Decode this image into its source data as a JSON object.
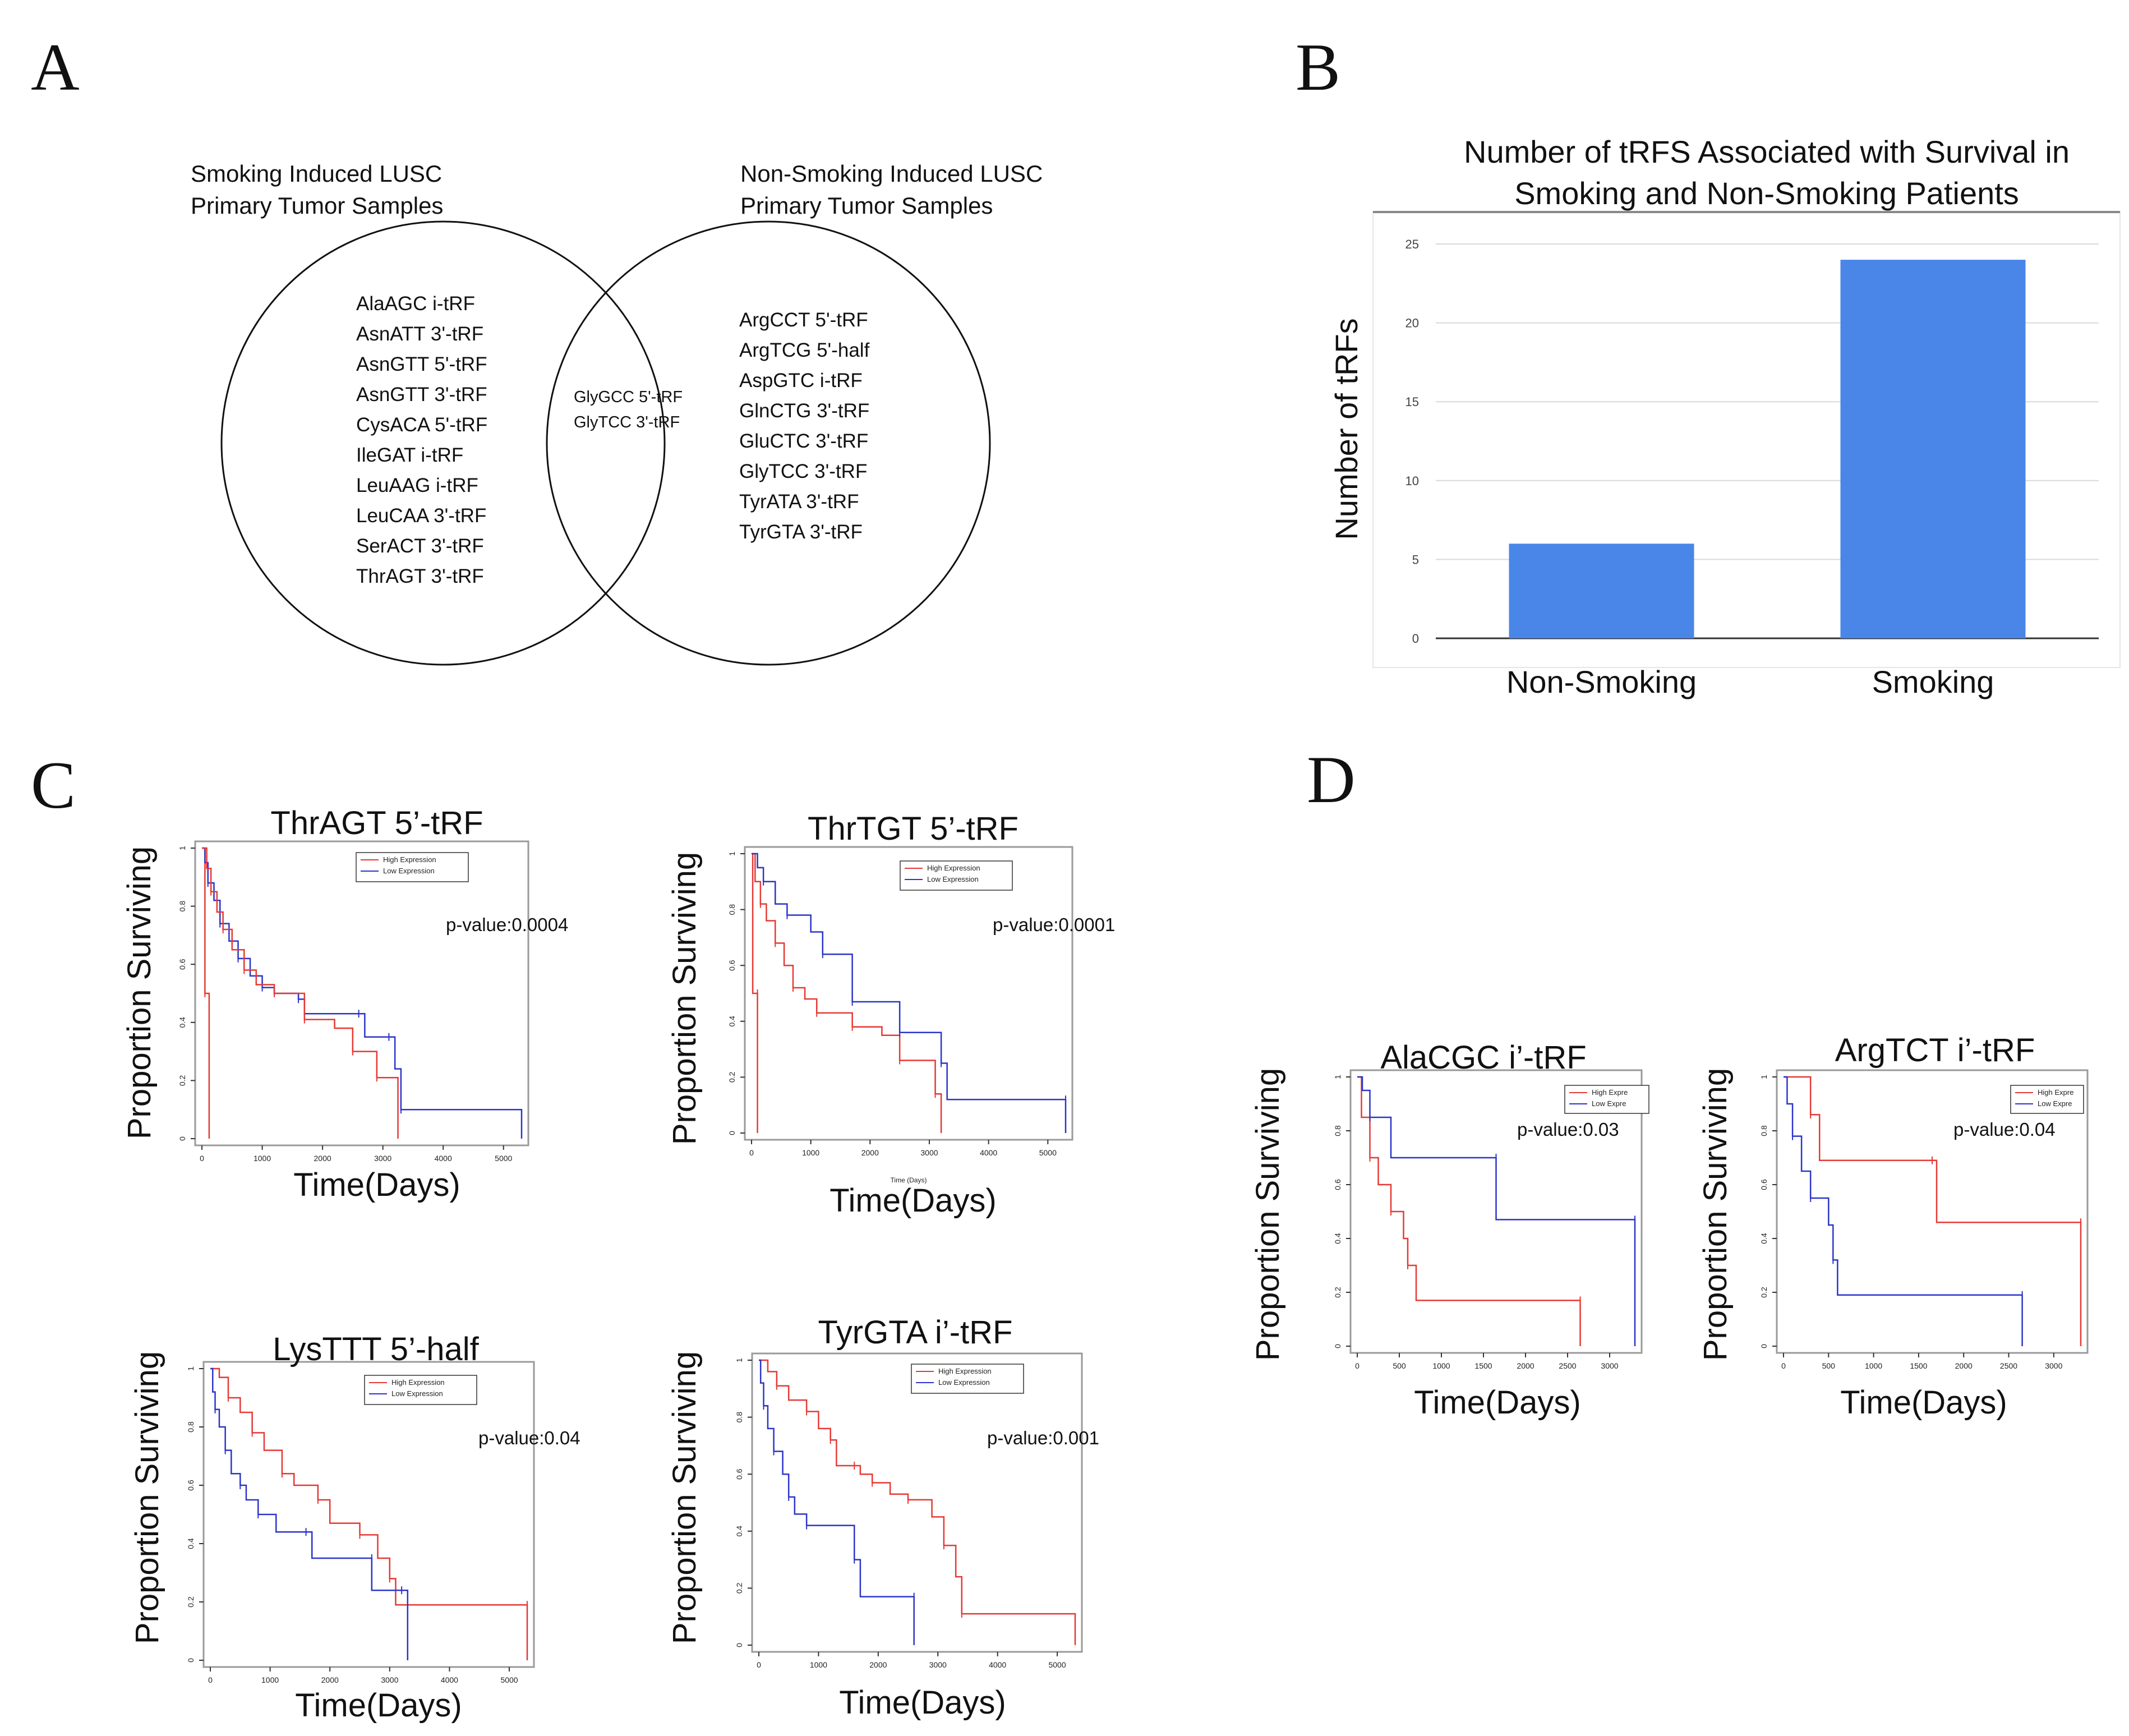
{
  "panels": {
    "A": "A",
    "B": "B",
    "C": "C",
    "D": "D"
  },
  "venn": {
    "left_title": [
      "Smoking Induced LUSC",
      "Primary Tumor Samples"
    ],
    "right_title": [
      "Non-Smoking Induced LUSC",
      "Primary Tumor Samples"
    ],
    "left_items": [
      "AlaAGC i-tRF",
      "AsnATT 3'-tRF",
      "AsnGTT 5'-tRF",
      "AsnGTT 3'-tRF",
      "CysACA 5'-tRF",
      "IleGAT i-tRF",
      "LeuAAG i-tRF",
      "LeuCAA 3'-tRF",
      "SerACT 3'-tRF",
      "ThrAGT 3'-tRF"
    ],
    "shared_items": [
      "GlyGCC 5'-tRF",
      "GlyTCC 3'-tRF"
    ],
    "right_items": [
      "ArgCCT 5'-tRF",
      "ArgTCG 5'-half",
      "AspGTC i-tRF",
      "GlnCTG 3'-tRF",
      "GluCTC 3'-tRF",
      "GlyTCC 3'-tRF",
      "TyrATA 3'-tRF",
      "TyrGTA 3'-tRF"
    ]
  },
  "colors": {
    "bar": "#4a86e8",
    "high": "#e53935",
    "low": "#2b35c8",
    "axis": "#555555"
  },
  "chart_data": [
    {
      "id": "B",
      "type": "bar",
      "title_lines": [
        "Number of tRFS Associated with Survival in",
        "Smoking and Non-Smoking Patients"
      ],
      "title": "Number of tRFS Associated with Survival in Smoking and Non-Smoking Patients",
      "ylabel": "Number of tRFs",
      "xlabel": "",
      "categories": [
        "Non-Smoking",
        "Smoking"
      ],
      "values": [
        6,
        24
      ],
      "ylim": [
        0,
        25
      ],
      "yticks": [
        0,
        5,
        10,
        15,
        20,
        25
      ],
      "grid": true
    },
    {
      "id": "C1",
      "type": "line",
      "title": "ThrAGT 5’-tRF",
      "xlabel": "Time(Days)",
      "ylabel": "Proportion Surviving",
      "xlim": [
        0,
        5300
      ],
      "ylim": [
        0,
        1
      ],
      "xticks": [
        0,
        1000,
        2000,
        3000,
        4000,
        5000
      ],
      "yticks": [
        0.0,
        0.2,
        0.4,
        0.6,
        0.8,
        1.0
      ],
      "p_value": "p-value:0.0004",
      "legend": [
        "High Expression",
        "Low Expression"
      ],
      "series": [
        {
          "name": "High Expression",
          "points": [
            [
              0,
              1
            ],
            [
              50,
              1
            ],
            [
              50,
              0.5
            ],
            [
              120,
              0.5
            ],
            [
              120,
              0
            ]
          ]
        },
        {
          "name": "Low Expression",
          "points": [
            [
              0,
              1
            ],
            [
              50,
              0.95
            ],
            [
              100,
              0.88
            ],
            [
              200,
              0.82
            ],
            [
              300,
              0.74
            ],
            [
              450,
              0.68
            ],
            [
              600,
              0.62
            ],
            [
              800,
              0.56
            ],
            [
              1000,
              0.52
            ],
            [
              1200,
              0.5
            ],
            [
              1600,
              0.48
            ],
            [
              1700,
              0.43
            ],
            [
              2600,
              0.43
            ],
            [
              2700,
              0.35
            ],
            [
              3100,
              0.35
            ],
            [
              3200,
              0.24
            ],
            [
              3300,
              0.1
            ],
            [
              5300,
              0.1
            ],
            [
              5300,
              0
            ]
          ]
        },
        {
          "name": "High Expression",
          "points": [
            [
              0,
              1
            ],
            [
              80,
              0.93
            ],
            [
              150,
              0.85
            ],
            [
              250,
              0.78
            ],
            [
              350,
              0.72
            ],
            [
              500,
              0.65
            ],
            [
              700,
              0.58
            ],
            [
              900,
              0.53
            ],
            [
              1200,
              0.5
            ],
            [
              1600,
              0.5
            ],
            [
              1700,
              0.41
            ],
            [
              2200,
              0.38
            ],
            [
              2500,
              0.3
            ],
            [
              2800,
              0.3
            ],
            [
              2900,
              0.21
            ],
            [
              3250,
              0.21
            ],
            [
              3250,
              0
            ]
          ]
        }
      ]
    },
    {
      "id": "C2",
      "type": "line",
      "title": "ThrTGT 5’-tRF",
      "xlabel": "Time(Days)",
      "ylabel": "Proportion Surviving",
      "x_small_label": "Time (Days)",
      "xlim": [
        0,
        5300
      ],
      "ylim": [
        0,
        1
      ],
      "xticks": [
        0,
        1000,
        2000,
        3000,
        4000,
        5000
      ],
      "yticks": [
        0.0,
        0.2,
        0.4,
        0.6,
        0.8,
        1.0
      ],
      "p_value": "p-value:0.0001",
      "legend": [
        "High Expression",
        "Low Expression"
      ],
      "series": [
        {
          "name": "High Expression",
          "points": [
            [
              0,
              1
            ],
            [
              20,
              0.5
            ],
            [
              100,
              0.5
            ],
            [
              100,
              0
            ]
          ]
        },
        {
          "name": "High Expression",
          "points": [
            [
              0,
              1
            ],
            [
              60,
              0.9
            ],
            [
              150,
              0.82
            ],
            [
              250,
              0.76
            ],
            [
              400,
              0.68
            ],
            [
              550,
              0.6
            ],
            [
              700,
              0.52
            ],
            [
              900,
              0.48
            ],
            [
              1100,
              0.43
            ],
            [
              1600,
              0.43
            ],
            [
              1700,
              0.38
            ],
            [
              2200,
              0.35
            ],
            [
              2500,
              0.26
            ],
            [
              3100,
              0.26
            ],
            [
              3100,
              0.14
            ],
            [
              3200,
              0
            ]
          ]
        },
        {
          "name": "Low Expression",
          "points": [
            [
              0,
              1
            ],
            [
              100,
              0.95
            ],
            [
              200,
              0.9
            ],
            [
              400,
              0.82
            ],
            [
              600,
              0.78
            ],
            [
              1000,
              0.72
            ],
            [
              1200,
              0.64
            ],
            [
              1600,
              0.64
            ],
            [
              1700,
              0.47
            ],
            [
              2500,
              0.47
            ],
            [
              2500,
              0.36
            ],
            [
              3100,
              0.36
            ],
            [
              3200,
              0.25
            ],
            [
              3300,
              0.12
            ],
            [
              5300,
              0.12
            ],
            [
              5300,
              0
            ]
          ]
        }
      ]
    },
    {
      "id": "C3",
      "type": "line",
      "title": "LysTTT 5’-half",
      "xlabel": "Time(Days)",
      "ylabel": "Proportion Surviving",
      "xlim": [
        0,
        5300
      ],
      "ylim": [
        0,
        1
      ],
      "xticks": [
        0,
        1000,
        2000,
        3000,
        4000,
        5000
      ],
      "yticks": [
        0.0,
        0.2,
        0.4,
        0.6,
        0.8,
        1.0
      ],
      "p_value": "p-value:0.04",
      "legend": [
        "High Expression",
        "Low Expression"
      ],
      "series": [
        {
          "name": "High Expression",
          "points": [
            [
              0,
              1
            ],
            [
              150,
              0.97
            ],
            [
              300,
              0.9
            ],
            [
              500,
              0.85
            ],
            [
              700,
              0.78
            ],
            [
              900,
              0.72
            ],
            [
              1200,
              0.64
            ],
            [
              1400,
              0.6
            ],
            [
              1800,
              0.55
            ],
            [
              2000,
              0.47
            ],
            [
              2500,
              0.43
            ],
            [
              2800,
              0.35
            ],
            [
              3000,
              0.28
            ],
            [
              3100,
              0.19
            ],
            [
              5300,
              0.19
            ],
            [
              5300,
              0
            ]
          ]
        },
        {
          "name": "Low Expression",
          "points": [
            [
              0,
              1
            ],
            [
              40,
              0.92
            ],
            [
              80,
              0.86
            ],
            [
              150,
              0.8
            ],
            [
              250,
              0.72
            ],
            [
              350,
              0.64
            ],
            [
              500,
              0.6
            ],
            [
              600,
              0.55
            ],
            [
              800,
              0.5
            ],
            [
              1100,
              0.44
            ],
            [
              1600,
              0.44
            ],
            [
              1700,
              0.35
            ],
            [
              2700,
              0.35
            ],
            [
              2700,
              0.24
            ],
            [
              3200,
              0.24
            ],
            [
              3300,
              0.1
            ],
            [
              3300,
              0
            ]
          ]
        }
      ]
    },
    {
      "id": "C4",
      "type": "line",
      "title": "TyrGTA i’-tRF",
      "xlabel": "Time(Days)",
      "ylabel": "Proportion Surviving",
      "xlim": [
        0,
        5300
      ],
      "ylim": [
        0,
        1
      ],
      "xticks": [
        0,
        1000,
        2000,
        3000,
        4000,
        5000
      ],
      "yticks": [
        0.0,
        0.2,
        0.4,
        0.6,
        0.8,
        1.0
      ],
      "p_value": "p-value:0.001",
      "legend": [
        "High Expression",
        "Low Expression"
      ],
      "series": [
        {
          "name": "High Expression",
          "points": [
            [
              0,
              1
            ],
            [
              150,
              0.96
            ],
            [
              300,
              0.91
            ],
            [
              500,
              0.86
            ],
            [
              800,
              0.82
            ],
            [
              1000,
              0.76
            ],
            [
              1200,
              0.72
            ],
            [
              1300,
              0.63
            ],
            [
              1600,
              0.63
            ],
            [
              1700,
              0.6
            ],
            [
              1900,
              0.57
            ],
            [
              2200,
              0.53
            ],
            [
              2500,
              0.51
            ],
            [
              2900,
              0.45
            ],
            [
              3100,
              0.35
            ],
            [
              3300,
              0.24
            ],
            [
              3400,
              0.11
            ],
            [
              5300,
              0.11
            ],
            [
              5300,
              0
            ]
          ]
        },
        {
          "name": "Low Expression",
          "points": [
            [
              0,
              1
            ],
            [
              30,
              0.92
            ],
            [
              80,
              0.84
            ],
            [
              150,
              0.76
            ],
            [
              250,
              0.68
            ],
            [
              400,
              0.6
            ],
            [
              500,
              0.52
            ],
            [
              600,
              0.46
            ],
            [
              800,
              0.42
            ],
            [
              1500,
              0.42
            ],
            [
              1600,
              0.3
            ],
            [
              1700,
              0.17
            ],
            [
              2600,
              0.17
            ],
            [
              2600,
              0
            ]
          ]
        }
      ]
    },
    {
      "id": "D1",
      "type": "line",
      "title": "AlaCGC i’-tRF",
      "xlabel": "Time(Days)",
      "ylabel": "Proportion Surviving",
      "xlim": [
        0,
        3300
      ],
      "ylim": [
        0,
        1
      ],
      "xticks": [
        0,
        500,
        1000,
        1500,
        2000,
        2500,
        3000
      ],
      "yticks": [
        0.0,
        0.2,
        0.4,
        0.6,
        0.8,
        1.0
      ],
      "p_value": "p-value:0.03",
      "legend": [
        "High Expre",
        "Low Expre"
      ],
      "series": [
        {
          "name": "High Expre",
          "points": [
            [
              0,
              1
            ],
            [
              50,
              0.85
            ],
            [
              150,
              0.7
            ],
            [
              250,
              0.6
            ],
            [
              400,
              0.5
            ],
            [
              550,
              0.4
            ],
            [
              600,
              0.3
            ],
            [
              700,
              0.17
            ],
            [
              2650,
              0.17
            ],
            [
              2650,
              0
            ]
          ]
        },
        {
          "name": "Low Expre",
          "points": [
            [
              0,
              1
            ],
            [
              60,
              0.95
            ],
            [
              150,
              0.85
            ],
            [
              400,
              0.7
            ],
            [
              1650,
              0.7
            ],
            [
              1650,
              0.47
            ],
            [
              3300,
              0.47
            ],
            [
              3300,
              0
            ]
          ]
        }
      ]
    },
    {
      "id": "D2",
      "type": "line",
      "title": "ArgTCT i’-tRF",
      "xlabel": "Time(Days)",
      "ylabel": "Proportion Surviving",
      "xlim": [
        0,
        3300
      ],
      "ylim": [
        0,
        1
      ],
      "xticks": [
        0,
        500,
        1000,
        1500,
        2000,
        2500,
        3000
      ],
      "yticks": [
        0.0,
        0.2,
        0.4,
        0.6,
        0.8,
        1.0
      ],
      "p_value": "p-value:0.04",
      "legend": [
        "High Expre",
        "Low Expre"
      ],
      "series": [
        {
          "name": "High Expre",
          "points": [
            [
              0,
              1
            ],
            [
              200,
              1
            ],
            [
              300,
              0.86
            ],
            [
              400,
              0.69
            ],
            [
              1650,
              0.69
            ],
            [
              1700,
              0.46
            ],
            [
              3300,
              0.46
            ],
            [
              3300,
              0
            ]
          ]
        },
        {
          "name": "Low Expre",
          "points": [
            [
              0,
              1
            ],
            [
              40,
              0.9
            ],
            [
              100,
              0.78
            ],
            [
              200,
              0.65
            ],
            [
              300,
              0.55
            ],
            [
              500,
              0.45
            ],
            [
              550,
              0.32
            ],
            [
              600,
              0.19
            ],
            [
              2650,
              0.19
            ],
            [
              2650,
              0
            ]
          ]
        }
      ]
    }
  ]
}
